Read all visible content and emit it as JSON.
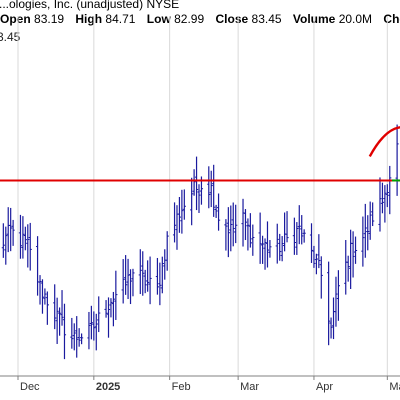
{
  "header": {
    "symbol_name": "...ologies, Inc. (unadjusted)",
    "exchange": "NYSE",
    "open_label": "Open",
    "open_value": "83.19",
    "high_label": "High",
    "high_value": "84.71",
    "low_label": "Low",
    "low_value": "82.99",
    "close_label": "Close",
    "close_value": "83.45",
    "volume_label": "Volume",
    "volume_value": "20.0M",
    "change_label": "Chg"
  },
  "last_price_label": "3.45",
  "colors": {
    "bars": "#1a1a9e",
    "resistance": "#e00000",
    "arc": "#e00000",
    "grid": "#d9d9d9",
    "axis": "#808080",
    "marker": "#00a000"
  },
  "chart_data": {
    "type": "ohlc",
    "x_range": [
      "2024-11-22",
      "2025-05-07"
    ],
    "y_range": [
      68,
      95
    ],
    "xticks": [
      {
        "date": "2024-12-01",
        "label": "Dec"
      },
      {
        "date": "2025-01-01",
        "label": "2025"
      },
      {
        "date": "2025-02-01",
        "label": "Feb"
      },
      {
        "date": "2025-03-01",
        "label": "Mar"
      },
      {
        "date": "2025-04-01",
        "label": "Apr"
      },
      {
        "date": "2025-05-01",
        "label": "May"
      }
    ],
    "bold_tick": "2025",
    "resistance_level": 84.5,
    "segments": [
      {
        "date": "2024-11-22",
        "price": 78.5
      },
      {
        "date": "2024-11-28",
        "price": 80.2
      },
      {
        "date": "2024-12-05",
        "price": 79.0
      },
      {
        "date": "2024-12-10",
        "price": 75.5
      },
      {
        "date": "2024-12-17",
        "price": 73.0
      },
      {
        "date": "2024-12-23",
        "price": 71.2
      },
      {
        "date": "2024-12-30",
        "price": 71.6
      },
      {
        "date": "2025-01-03",
        "price": 72.8
      },
      {
        "date": "2025-01-08",
        "price": 74.5
      },
      {
        "date": "2025-01-13",
        "price": 75.4
      },
      {
        "date": "2025-01-17",
        "price": 76.8
      },
      {
        "date": "2025-01-22",
        "price": 76.0
      },
      {
        "date": "2025-01-27",
        "price": 75.2
      },
      {
        "date": "2025-01-31",
        "price": 79.5
      },
      {
        "date": "2025-02-05",
        "price": 81.8
      },
      {
        "date": "2025-02-10",
        "price": 83.5
      },
      {
        "date": "2025-02-14",
        "price": 84.2
      },
      {
        "date": "2025-02-18",
        "price": 83.8
      },
      {
        "date": "2025-02-21",
        "price": 81.5
      },
      {
        "date": "2025-02-26",
        "price": 80.3
      },
      {
        "date": "2025-03-03",
        "price": 81.2
      },
      {
        "date": "2025-03-07",
        "price": 79.6
      },
      {
        "date": "2025-03-12",
        "price": 79.0
      },
      {
        "date": "2025-03-17",
        "price": 78.8
      },
      {
        "date": "2025-03-21",
        "price": 79.5
      },
      {
        "date": "2025-03-26",
        "price": 80.4
      },
      {
        "date": "2025-03-31",
        "price": 78.3
      },
      {
        "date": "2025-04-04",
        "price": 76.5
      },
      {
        "date": "2025-04-08",
        "price": 72.0
      },
      {
        "date": "2025-04-11",
        "price": 75.5
      },
      {
        "date": "2025-04-16",
        "price": 78.5
      },
      {
        "date": "2025-04-22",
        "price": 80.0
      },
      {
        "date": "2025-04-25",
        "price": 81.5
      },
      {
        "date": "2025-04-29",
        "price": 82.8
      },
      {
        "date": "2025-05-02",
        "price": 85.0
      },
      {
        "date": "2025-05-06",
        "price": 88.0
      }
    ]
  }
}
